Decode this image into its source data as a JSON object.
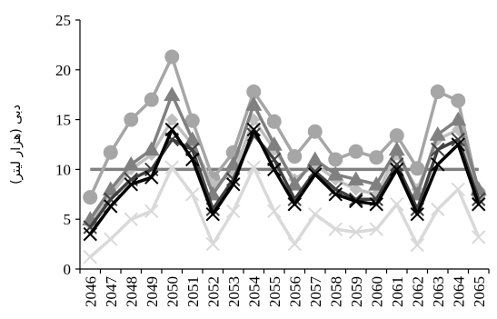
{
  "chart_data": {
    "type": "line",
    "title": "",
    "xlabel": "",
    "ylabel": "دبی (هزار لیتر)",
    "ylim": [
      0,
      25
    ],
    "yticks": [
      0,
      5,
      10,
      15,
      20,
      25
    ],
    "x": [
      "2046",
      "2047",
      "2048",
      "2049",
      "2050",
      "2051",
      "2052",
      "2053",
      "2054",
      "2055",
      "2056",
      "2057",
      "2058",
      "2059",
      "2060",
      "2061",
      "2062",
      "2063",
      "2064",
      "2065"
    ],
    "grid": false,
    "legend": "none",
    "series": [
      {
        "color": "#000000",
        "marker": "x",
        "values": [
          3.5,
          6.3,
          8.5,
          9.2,
          14.0,
          11.0,
          5.5,
          8.5,
          14.0,
          10.0,
          6.5,
          9.5,
          7.5,
          6.8,
          6.5,
          10.0,
          5.5,
          10.5,
          12.5,
          6.5
        ]
      },
      {
        "color": "#404040",
        "marker": "x",
        "values": [
          4.2,
          7.0,
          9.0,
          10.0,
          13.0,
          12.0,
          6.0,
          9.0,
          13.5,
          11.0,
          7.0,
          9.8,
          8.0,
          7.0,
          7.0,
          10.5,
          6.0,
          12.0,
          13.0,
          7.0
        ]
      },
      {
        "color": "#808080",
        "marker": "triangle",
        "values": [
          5.0,
          8.0,
          10.5,
          12.0,
          17.5,
          13.0,
          7.5,
          10.5,
          16.5,
          12.5,
          8.5,
          11.0,
          9.5,
          9.0,
          8.5,
          12.0,
          7.5,
          13.5,
          15.0,
          8.0
        ]
      },
      {
        "color": "#a6a6a6",
        "marker": "circle",
        "values": [
          7.2,
          11.7,
          15.0,
          17.0,
          21.3,
          14.9,
          9.1,
          11.7,
          17.8,
          14.8,
          11.3,
          13.8,
          11.0,
          11.8,
          11.2,
          13.4,
          10.1,
          17.8,
          16.9,
          7.6
        ]
      },
      {
        "color": "#bfbfbf",
        "marker": "diamond",
        "values": [
          4.5,
          7.5,
          10.0,
          11.5,
          15.0,
          12.5,
          8.5,
          9.5,
          15.0,
          12.0,
          9.0,
          10.5,
          9.0,
          8.0,
          7.5,
          11.5,
          8.0,
          13.0,
          14.0,
          7.5
        ]
      },
      {
        "color": "#d9d9d9",
        "marker": "x",
        "values": [
          1.2,
          3.0,
          5.0,
          5.8,
          10.2,
          7.5,
          2.5,
          5.8,
          10.2,
          5.8,
          2.5,
          5.5,
          4.0,
          3.7,
          4.0,
          6.5,
          2.4,
          6.0,
          8.0,
          3.2
        ]
      },
      {
        "color": "#808080",
        "marker": "none",
        "values": [
          10,
          10,
          10,
          10,
          10,
          10,
          10,
          10,
          10,
          10,
          10,
          10,
          10,
          10,
          10,
          10,
          10,
          10,
          10,
          10
        ]
      }
    ]
  }
}
